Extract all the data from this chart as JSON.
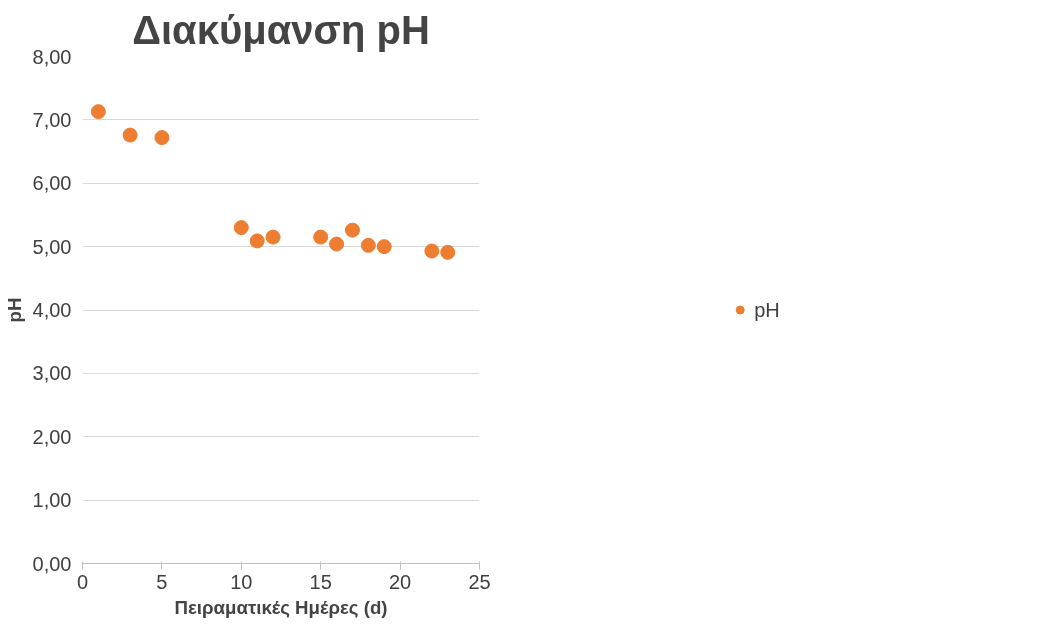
{
  "chart_data": {
    "type": "scatter",
    "title": "Διακύμανση pH",
    "xlabel": "Πειραματικές Ημέρες (d)",
    "ylabel": "pH",
    "x": [
      1,
      3,
      5,
      10,
      11,
      12,
      15,
      16,
      17,
      18,
      19,
      22,
      23
    ],
    "series": [
      {
        "name": "pH",
        "color": "#ed7d31",
        "values": [
          7.13,
          6.76,
          6.72,
          5.3,
          5.09,
          5.15,
          5.15,
          5.04,
          5.26,
          5.02,
          5.0,
          4.93,
          4.91
        ]
      }
    ],
    "xlim": [
      0,
      25
    ],
    "xticks": [
      0,
      5,
      10,
      15,
      20,
      25
    ],
    "ylim": [
      0,
      8
    ],
    "yticks": [
      {
        "value": 0,
        "label": "0,00"
      },
      {
        "value": 1,
        "label": "1,00"
      },
      {
        "value": 2,
        "label": "2,00"
      },
      {
        "value": 3,
        "label": "3,00"
      },
      {
        "value": 4,
        "label": "4,00"
      },
      {
        "value": 5,
        "label": "5,00"
      },
      {
        "value": 6,
        "label": "6,00"
      },
      {
        "value": 7,
        "label": "7,00"
      },
      {
        "value": 8,
        "label": "8,00"
      }
    ],
    "grid": "y",
    "legend": "right",
    "marker": "circle"
  }
}
